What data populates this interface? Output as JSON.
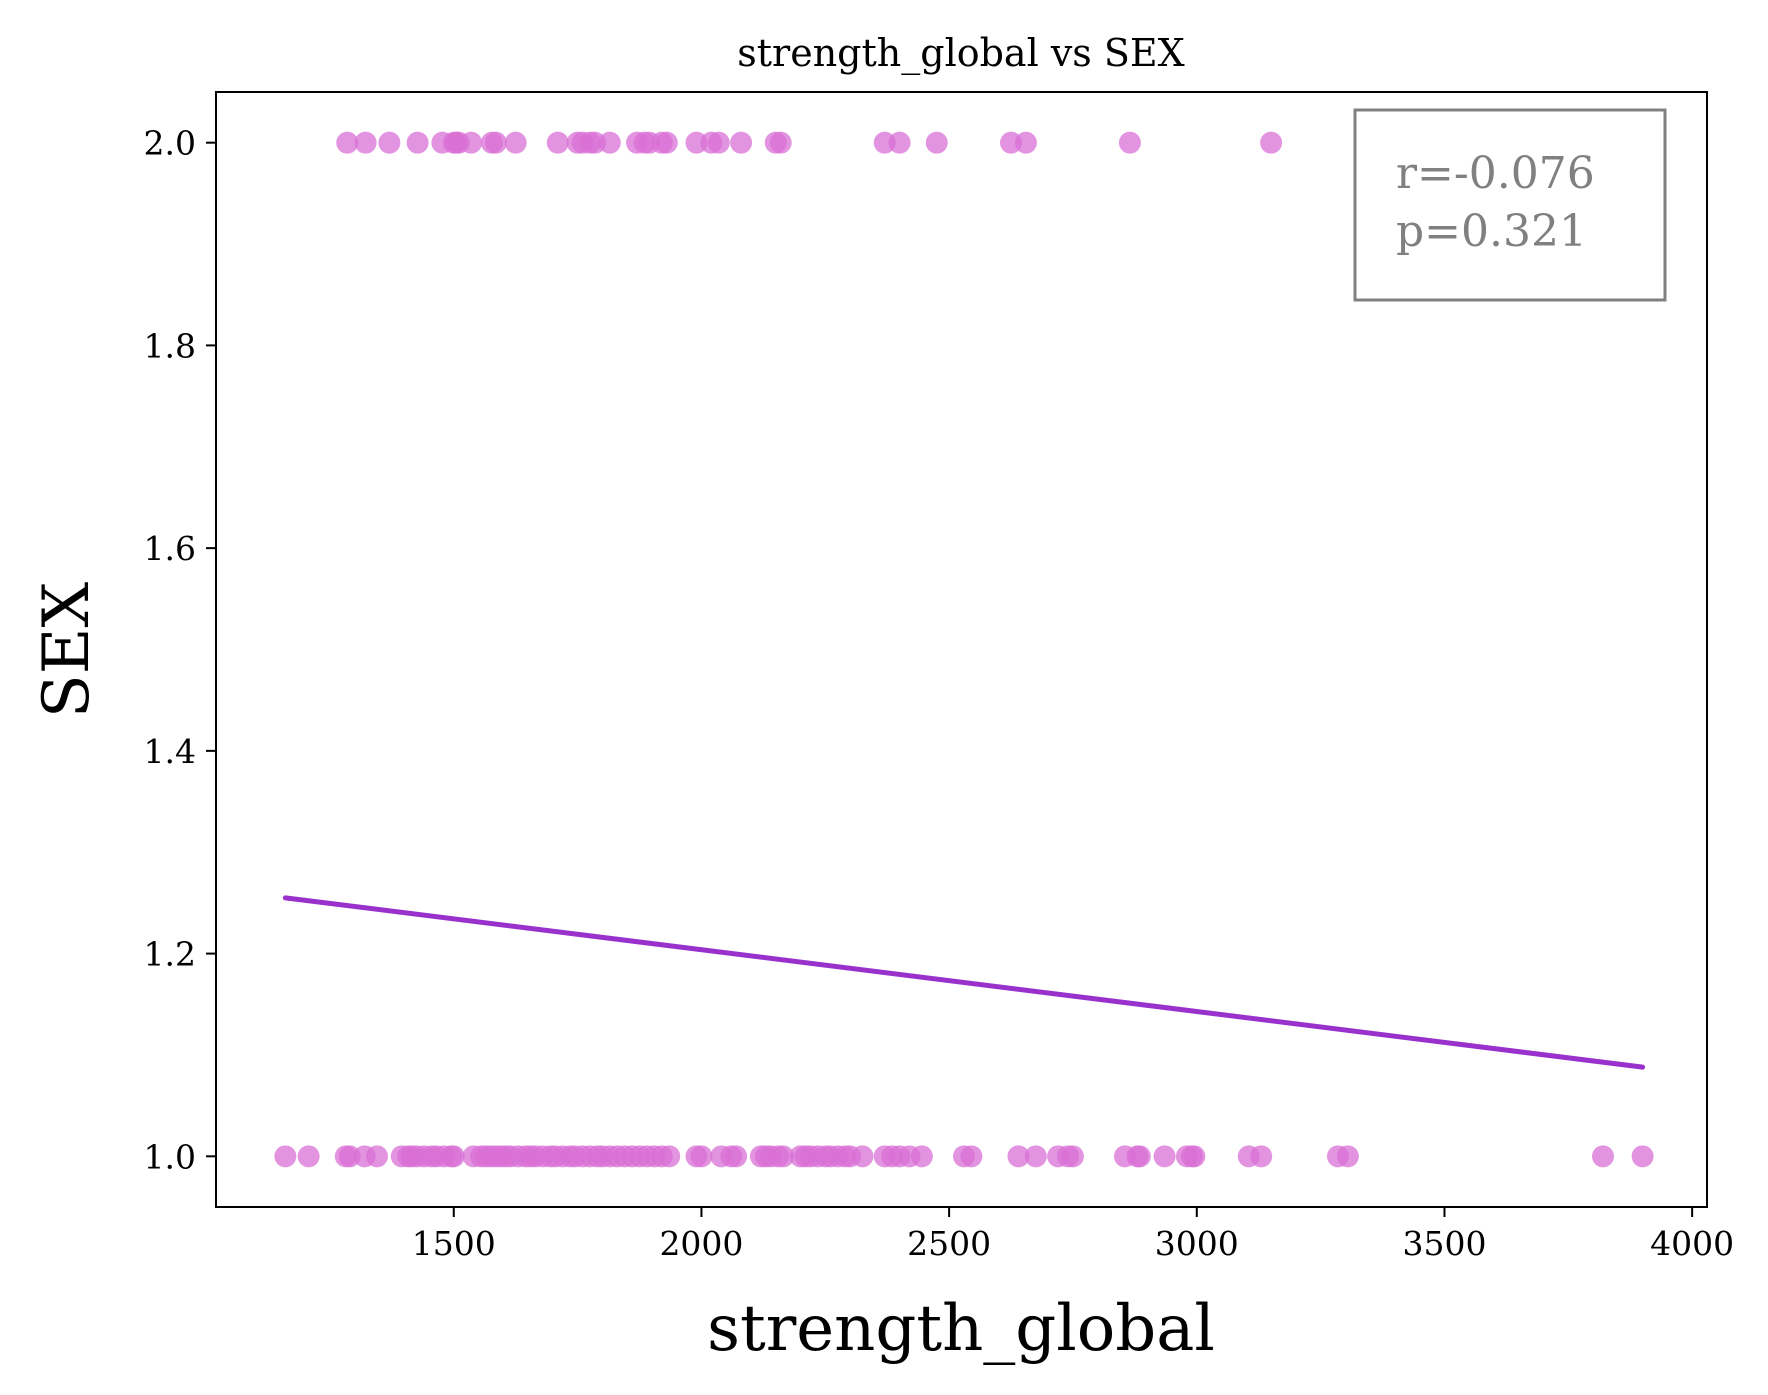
{
  "chart_data": {
    "type": "scatter",
    "title": "strength_global vs SEX",
    "xlabel": "strength_global",
    "ylabel": "SEX",
    "xlim": [
      1020,
      4030
    ],
    "ylim": [
      0.95,
      2.05
    ],
    "xticks": [
      1500,
      2000,
      2500,
      3000,
      3500,
      4000
    ],
    "yticks": [
      1.0,
      1.2,
      1.4,
      1.6,
      1.8,
      2.0
    ],
    "xtick_labels": [
      "1500",
      "2000",
      "2500",
      "3000",
      "3500",
      "4000"
    ],
    "ytick_labels": [
      "1.0",
      "1.2",
      "1.4",
      "1.6",
      "1.8",
      "2.0"
    ],
    "grid": false,
    "annotation": {
      "lines": [
        "r=-0.076",
        "p=0.321"
      ],
      "placement": "top-right"
    },
    "colors": {
      "points": "#da70d6",
      "regression": "#9932cc",
      "annotation_text": "#808080",
      "annotation_border": "#808080"
    },
    "series": [
      {
        "values_x": [
          1285,
          1322,
          1370,
          1427,
          1477,
          1500,
          1505,
          1510,
          1535,
          1577,
          1585,
          1625,
          1710,
          1750,
          1760,
          1775,
          1785,
          1815,
          1870,
          1885,
          1895,
          1920,
          1930,
          1990,
          2020,
          2035,
          2080,
          2150,
          2160,
          2370,
          2400,
          2475,
          2625,
          2655,
          2865,
          3150
        ],
        "values_y": [
          2,
          2,
          2,
          2,
          2,
          2,
          2,
          2,
          2,
          2,
          2,
          2,
          2,
          2,
          2,
          2,
          2,
          2,
          2,
          2,
          2,
          2,
          2,
          2,
          2,
          2,
          2,
          2,
          2,
          2,
          2,
          2,
          2,
          2,
          2,
          2
        ]
      },
      {
        "values_x": [
          1160,
          1207,
          1282,
          1290,
          1320,
          1345,
          1395,
          1408,
          1415,
          1425,
          1440,
          1455,
          1465,
          1480,
          1495,
          1500,
          1540,
          1555,
          1565,
          1575,
          1585,
          1595,
          1605,
          1615,
          1630,
          1645,
          1655,
          1665,
          1680,
          1695,
          1705,
          1720,
          1735,
          1745,
          1760,
          1775,
          1790,
          1800,
          1815,
          1830,
          1845,
          1860,
          1875,
          1890,
          1905,
          1920,
          1935,
          1990,
          2000,
          2040,
          2060,
          2070,
          2120,
          2130,
          2140,
          2155,
          2165,
          2200,
          2210,
          2220,
          2235,
          2250,
          2260,
          2275,
          2290,
          2300,
          2325,
          2370,
          2385,
          2400,
          2420,
          2445,
          2530,
          2545,
          2640,
          2675,
          2720,
          2740,
          2750,
          2855,
          2880,
          2885,
          2935,
          2980,
          2990,
          2995,
          3105,
          3130,
          3285,
          3305,
          3820,
          3900
        ],
        "values_y": [
          1,
          1,
          1,
          1,
          1,
          1,
          1,
          1,
          1,
          1,
          1,
          1,
          1,
          1,
          1,
          1,
          1,
          1,
          1,
          1,
          1,
          1,
          1,
          1,
          1,
          1,
          1,
          1,
          1,
          1,
          1,
          1,
          1,
          1,
          1,
          1,
          1,
          1,
          1,
          1,
          1,
          1,
          1,
          1,
          1,
          1,
          1,
          1,
          1,
          1,
          1,
          1,
          1,
          1,
          1,
          1,
          1,
          1,
          1,
          1,
          1,
          1,
          1,
          1,
          1,
          1,
          1,
          1,
          1,
          1,
          1,
          1,
          1,
          1,
          1,
          1,
          1,
          1,
          1,
          1,
          1,
          1,
          1,
          1,
          1,
          1,
          1,
          1,
          1,
          1,
          1,
          1
        ]
      }
    ],
    "regression_line": {
      "x": [
        1160,
        3900
      ],
      "y": [
        1.255,
        1.088
      ]
    }
  }
}
